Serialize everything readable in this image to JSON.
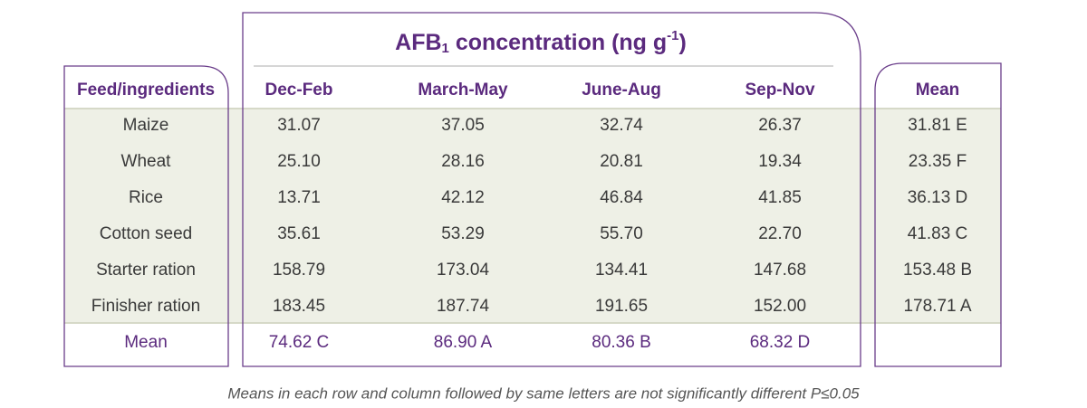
{
  "header": {
    "title": {
      "main": "AFB",
      "sub": "1",
      "rest": " concentration (ng g",
      "sup": "-1",
      "end": ")"
    },
    "columns": [
      "Feed/ingredients",
      "Dec-Feb",
      "March-May",
      "June-Aug",
      "Sep-Nov",
      "Mean"
    ]
  },
  "table": {
    "rows": [
      [
        "Maize",
        "31.07",
        "37.05",
        "32.74",
        "26.37",
        "31.81 E"
      ],
      [
        "Wheat",
        "25.10",
        "28.16",
        "20.81",
        "19.34",
        "23.35 F"
      ],
      [
        "Rice",
        "13.71",
        "42.12",
        "46.84",
        "41.85",
        "36.13 D"
      ],
      [
        "Cotton seed",
        "35.61",
        "53.29",
        "55.70",
        "22.70",
        "41.83 C"
      ],
      [
        "Starter ration",
        "158.79",
        "173.04",
        "134.41",
        "147.68",
        "153.48 B"
      ],
      [
        "Finisher ration",
        "183.45",
        "187.74",
        "191.65",
        "152.00",
        "178.71 A"
      ]
    ],
    "mean_row": [
      "Mean",
      "74.62 C",
      "86.90 A",
      "80.36 B",
      "68.32 D"
    ]
  },
  "footnote": "Means in each row and column followed by same letters are not significantly different P≤0.05"
}
